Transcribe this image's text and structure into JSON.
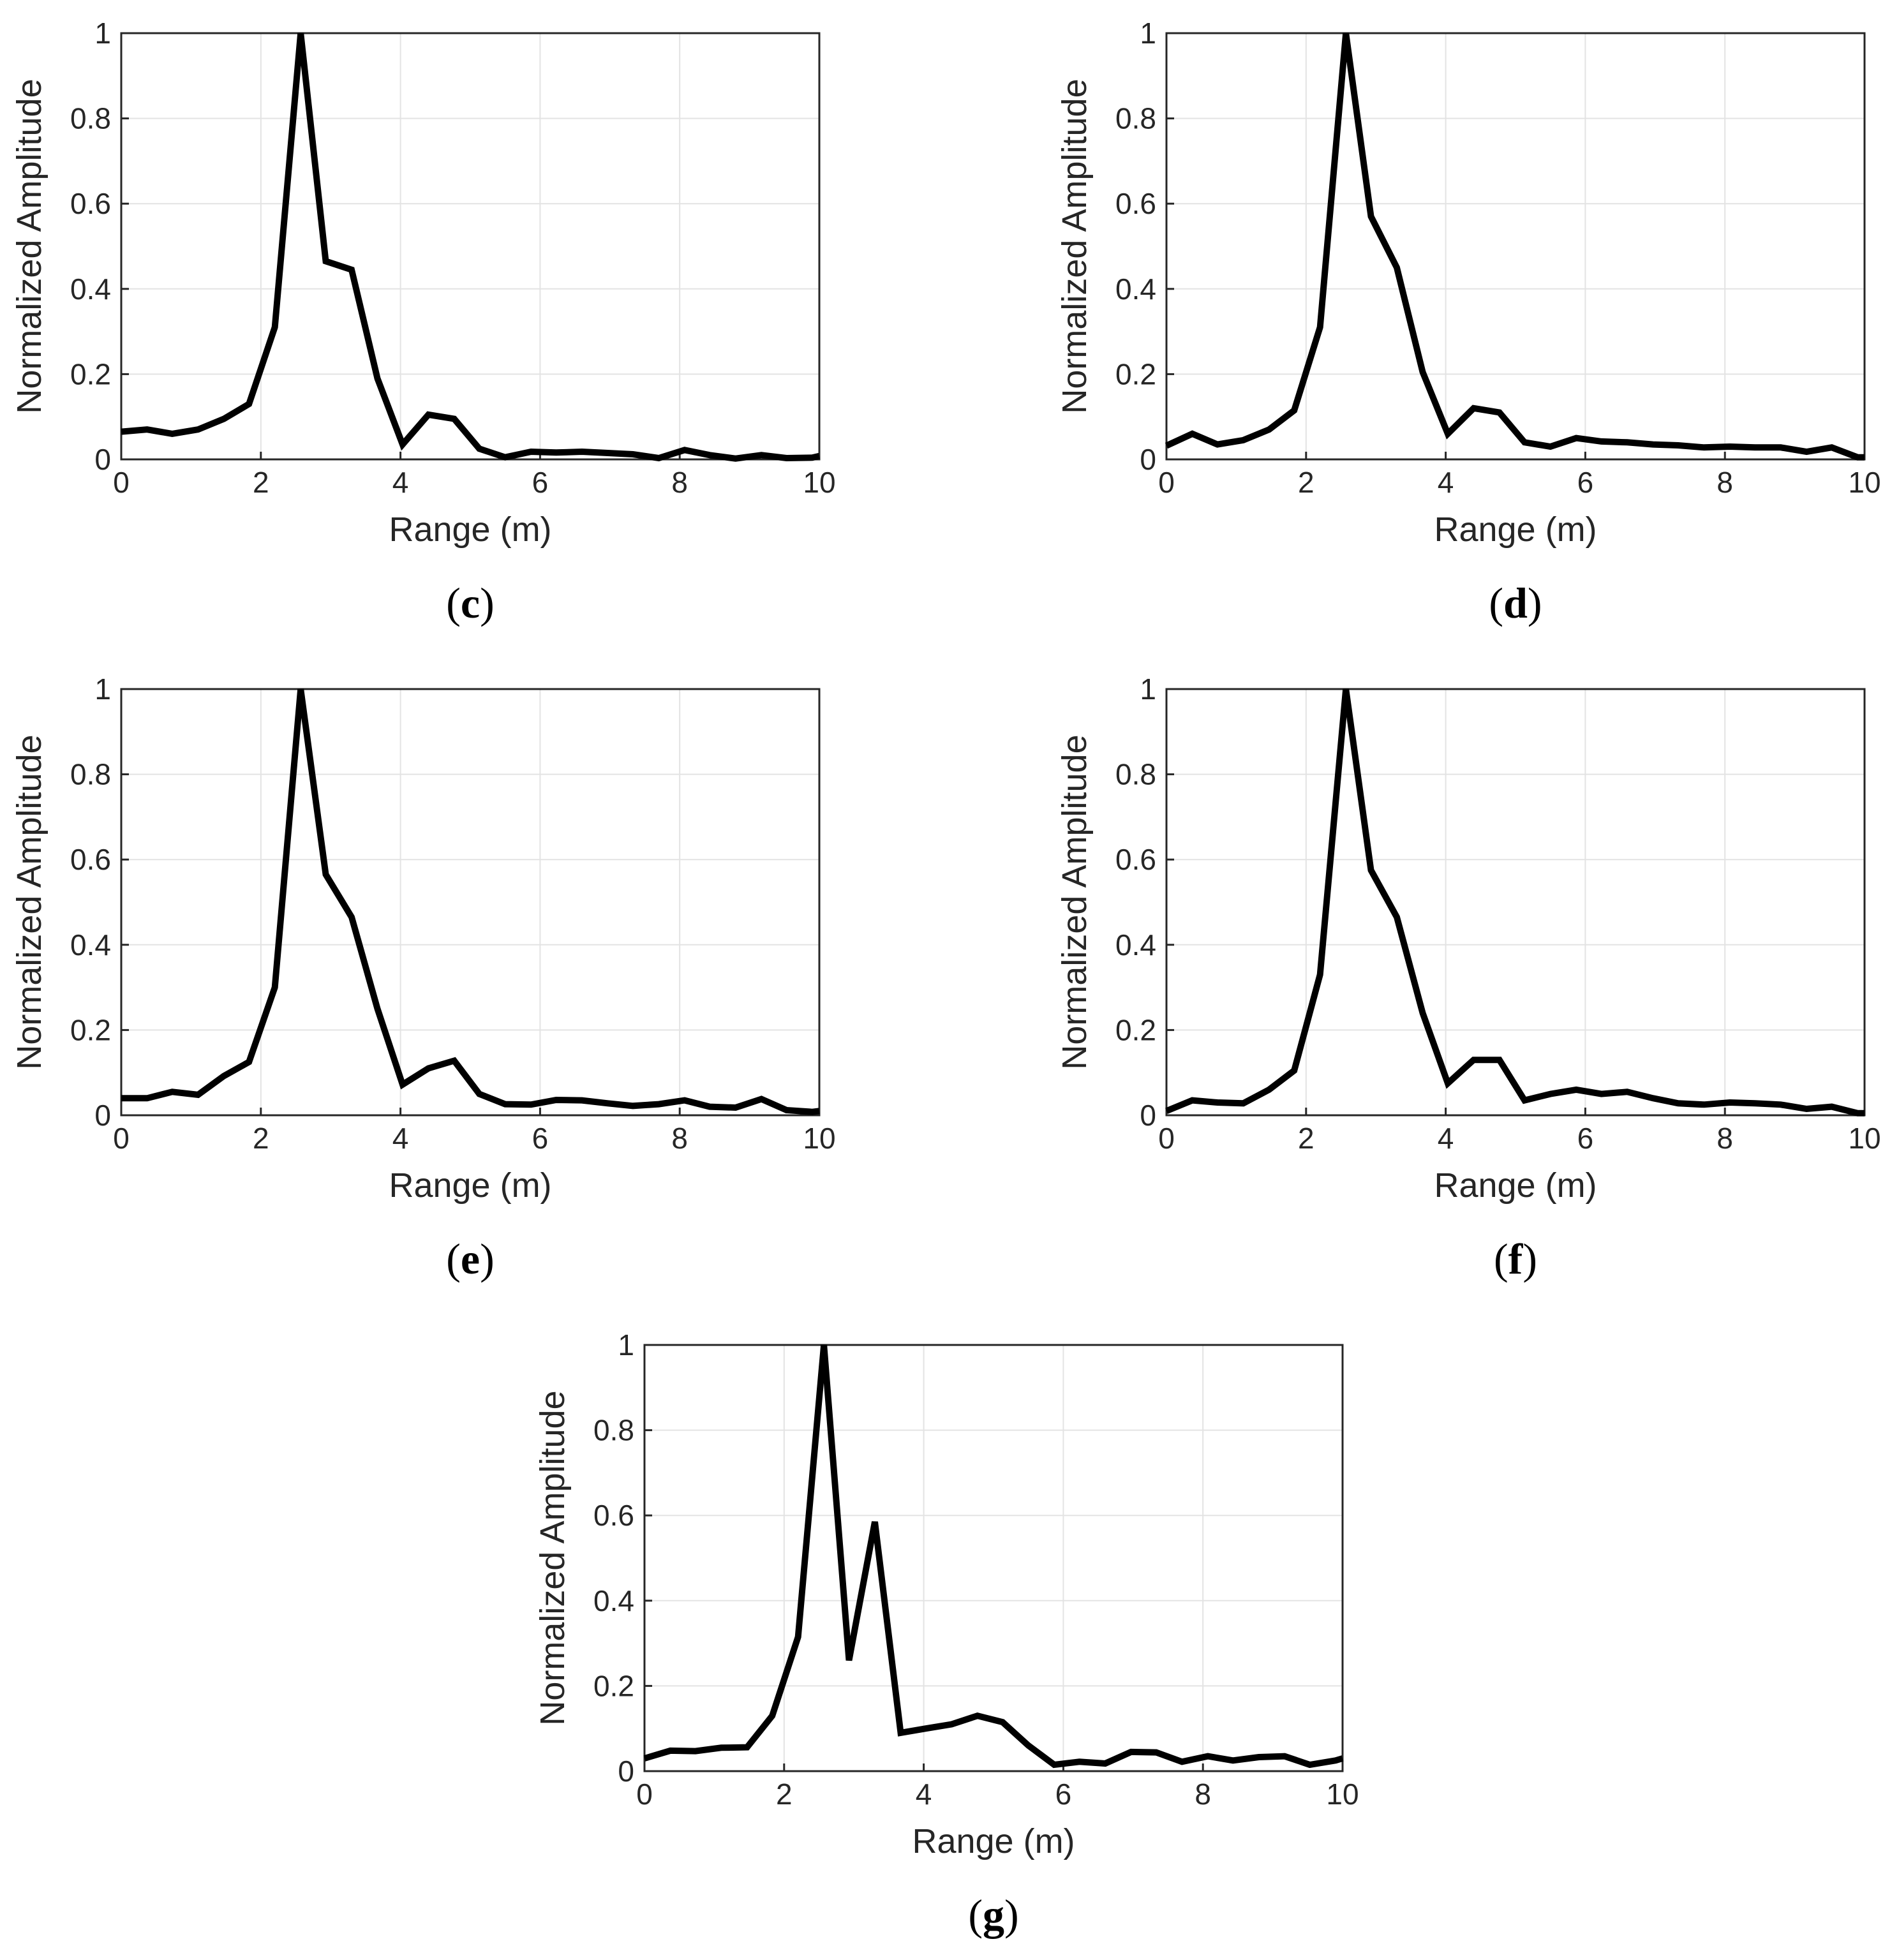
{
  "chart_data": [
    {
      "panel": "c",
      "type": "line",
      "xlabel": "Range (m)",
      "ylabel": "Normalized Amplitude",
      "xlim": [
        0,
        10
      ],
      "ylim": [
        0,
        1
      ],
      "xticks": [
        0,
        2,
        4,
        6,
        8,
        10
      ],
      "yticks": [
        0,
        0.2,
        0.4,
        0.6,
        0.8,
        1
      ],
      "xtick_labels": [
        "0",
        "2",
        "4",
        "6",
        "8",
        "10"
      ],
      "ytick_labels": [
        "0",
        "0.2",
        "0.4",
        "0.6",
        "0.8",
        "1"
      ],
      "grid": true,
      "x": [
        0,
        0.37,
        0.73,
        1.1,
        1.47,
        1.83,
        2.2,
        2.57,
        2.93,
        3.3,
        3.67,
        4.03,
        4.4,
        4.77,
        5.13,
        5.5,
        5.87,
        6.23,
        6.6,
        6.97,
        7.33,
        7.7,
        8.07,
        8.43,
        8.8,
        9.17,
        9.53,
        9.9,
        10.0
      ],
      "y": [
        0.065,
        0.07,
        0.06,
        0.07,
        0.095,
        0.13,
        0.31,
        1.0,
        0.465,
        0.445,
        0.19,
        0.035,
        0.105,
        0.095,
        0.025,
        0.005,
        0.018,
        0.016,
        0.018,
        0.015,
        0.012,
        0.003,
        0.022,
        0.01,
        0.002,
        0.01,
        0.003,
        0.004,
        0.008
      ]
    },
    {
      "panel": "d",
      "type": "line",
      "xlabel": "Range (m)",
      "ylabel": "Normalized Amplitude",
      "xlim": [
        0,
        10
      ],
      "ylim": [
        0,
        1
      ],
      "xticks": [
        0,
        2,
        4,
        6,
        8,
        10
      ],
      "yticks": [
        0,
        0.2,
        0.4,
        0.6,
        0.8,
        1
      ],
      "xtick_labels": [
        "0",
        "2",
        "4",
        "6",
        "8",
        "10"
      ],
      "ytick_labels": [
        "0",
        "0.2",
        "0.4",
        "0.6",
        "0.8",
        "1"
      ],
      "grid": true,
      "x": [
        0,
        0.37,
        0.73,
        1.1,
        1.47,
        1.83,
        2.2,
        2.57,
        2.93,
        3.3,
        3.67,
        4.03,
        4.4,
        4.77,
        5.13,
        5.5,
        5.87,
        6.23,
        6.6,
        6.97,
        7.33,
        7.7,
        8.07,
        8.43,
        8.8,
        9.17,
        9.53,
        9.9,
        10.0
      ],
      "y": [
        0.032,
        0.06,
        0.035,
        0.045,
        0.07,
        0.115,
        0.31,
        1.0,
        0.57,
        0.45,
        0.205,
        0.06,
        0.12,
        0.11,
        0.04,
        0.03,
        0.05,
        0.042,
        0.04,
        0.035,
        0.033,
        0.028,
        0.03,
        0.028,
        0.028,
        0.018,
        0.028,
        0.005,
        0.005
      ]
    },
    {
      "panel": "e",
      "type": "line",
      "xlabel": "Range (m)",
      "ylabel": "Normalized Amplitude",
      "xlim": [
        0,
        10
      ],
      "ylim": [
        0,
        1
      ],
      "xticks": [
        0,
        2,
        4,
        6,
        8,
        10
      ],
      "yticks": [
        0,
        0.2,
        0.4,
        0.6,
        0.8,
        1
      ],
      "xtick_labels": [
        "0",
        "2",
        "4",
        "6",
        "8",
        "10"
      ],
      "ytick_labels": [
        "0",
        "0.2",
        "0.4",
        "0.6",
        "0.8",
        "1"
      ],
      "grid": true,
      "x": [
        0,
        0.37,
        0.73,
        1.1,
        1.47,
        1.83,
        2.2,
        2.57,
        2.93,
        3.3,
        3.67,
        4.03,
        4.4,
        4.77,
        5.13,
        5.5,
        5.87,
        6.23,
        6.6,
        6.97,
        7.33,
        7.7,
        8.07,
        8.43,
        8.8,
        9.17,
        9.53,
        9.9,
        10.0
      ],
      "y": [
        0.04,
        0.04,
        0.055,
        0.048,
        0.092,
        0.125,
        0.3,
        1.0,
        0.565,
        0.465,
        0.25,
        0.072,
        0.11,
        0.128,
        0.05,
        0.026,
        0.025,
        0.036,
        0.035,
        0.028,
        0.022,
        0.026,
        0.035,
        0.02,
        0.018,
        0.038,
        0.012,
        0.008,
        0.01
      ]
    },
    {
      "panel": "f",
      "type": "line",
      "xlabel": "Range (m)",
      "ylabel": "Normalized Amplitude",
      "xlim": [
        0,
        10
      ],
      "ylim": [
        0,
        1
      ],
      "xticks": [
        0,
        2,
        4,
        6,
        8,
        10
      ],
      "yticks": [
        0,
        0.2,
        0.4,
        0.6,
        0.8,
        1
      ],
      "xtick_labels": [
        "0",
        "2",
        "4",
        "6",
        "8",
        "10"
      ],
      "ytick_labels": [
        "0",
        "0.2",
        "0.4",
        "0.6",
        "0.8",
        "1"
      ],
      "grid": true,
      "x": [
        0,
        0.37,
        0.73,
        1.1,
        1.47,
        1.83,
        2.2,
        2.57,
        2.93,
        3.3,
        3.67,
        4.03,
        4.4,
        4.77,
        5.13,
        5.5,
        5.87,
        6.23,
        6.6,
        6.97,
        7.33,
        7.7,
        8.07,
        8.43,
        8.8,
        9.17,
        9.53,
        9.9,
        10.0
      ],
      "y": [
        0.01,
        0.035,
        0.03,
        0.028,
        0.06,
        0.105,
        0.33,
        1.0,
        0.575,
        0.465,
        0.24,
        0.075,
        0.13,
        0.13,
        0.035,
        0.05,
        0.06,
        0.05,
        0.055,
        0.04,
        0.028,
        0.025,
        0.03,
        0.028,
        0.025,
        0.015,
        0.02,
        0.005,
        0.005
      ]
    },
    {
      "panel": "g",
      "type": "line",
      "xlabel": "Range (m)",
      "ylabel": "Normalized Amplitude",
      "xlim": [
        0,
        10
      ],
      "ylim": [
        0,
        1
      ],
      "xticks": [
        0,
        2,
        4,
        6,
        8,
        10
      ],
      "yticks": [
        0,
        0.2,
        0.4,
        0.6,
        0.8,
        1
      ],
      "xtick_labels": [
        "0",
        "2",
        "4",
        "6",
        "8",
        "10"
      ],
      "ytick_labels": [
        "0",
        "0.2",
        "0.4",
        "0.6",
        "0.8",
        "1"
      ],
      "grid": true,
      "x": [
        0,
        0.37,
        0.73,
        1.1,
        1.47,
        1.83,
        2.2,
        2.57,
        2.93,
        3.3,
        3.67,
        4.03,
        4.4,
        4.77,
        5.13,
        5.5,
        5.87,
        6.23,
        6.6,
        6.97,
        7.33,
        7.7,
        8.07,
        8.43,
        8.8,
        9.17,
        9.53,
        9.9,
        10.0
      ],
      "y": [
        0.03,
        0.048,
        0.047,
        0.055,
        0.056,
        0.13,
        0.315,
        1.0,
        0.26,
        0.585,
        0.09,
        0.1,
        0.11,
        0.13,
        0.115,
        0.06,
        0.015,
        0.022,
        0.018,
        0.045,
        0.044,
        0.022,
        0.035,
        0.025,
        0.033,
        0.035,
        0.015,
        0.025,
        0.03
      ]
    }
  ],
  "panel_labels": [
    "(c)",
    "(d)",
    "(e)",
    "(f)",
    "(g)"
  ],
  "colors": {
    "line": "#000000",
    "axis": "#262626",
    "grid": "#e3e3e3",
    "background": "#ffffff"
  }
}
